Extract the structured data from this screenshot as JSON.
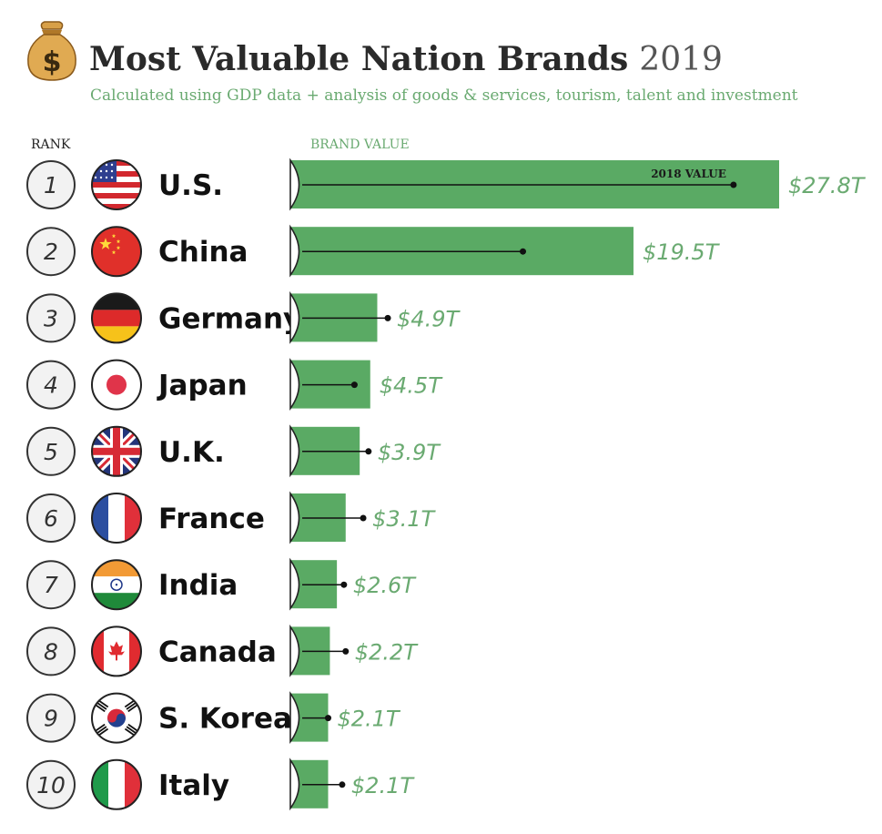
{
  "header": {
    "title": "Most Valuable Nation Brands",
    "year": "2019",
    "subtitle": "Calculated using GDP data + analysis of goods & services, tourism, talent and investment"
  },
  "columns": {
    "rank": "RANK",
    "value": "BRAND VALUE"
  },
  "annotation": "2018 VALUE",
  "colors": {
    "bar": "#5aaa64",
    "accent": "#6aaa71",
    "marker": "#111111"
  },
  "icons": {
    "title": "money-bag-icon"
  },
  "chart_data": {
    "type": "bar",
    "orientation": "horizontal",
    "unit": "$T",
    "categories": [
      "U.S.",
      "China",
      "Germany",
      "Japan",
      "U.K.",
      "France",
      "India",
      "Canada",
      "S. Korea",
      "Italy"
    ],
    "ranks": [
      "1",
      "2",
      "3",
      "4",
      "5",
      "6",
      "7",
      "8",
      "9",
      "10"
    ],
    "values": [
      27.8,
      19.5,
      4.9,
      4.5,
      3.9,
      3.1,
      2.6,
      2.2,
      2.1,
      2.1
    ],
    "value_labels": [
      "$27.8T",
      "$19.5T",
      "$4.9T",
      "$4.5T",
      "$3.9T",
      "$3.1T",
      "$2.6T",
      "$2.2T",
      "$2.1T",
      "$2.1T"
    ],
    "values_2018": [
      25.2,
      13.2,
      5.5,
      3.6,
      4.4,
      4.1,
      3.0,
      3.1,
      2.1,
      2.9
    ],
    "flags": [
      "us",
      "cn",
      "de",
      "jp",
      "gb",
      "fr",
      "in",
      "ca",
      "kr",
      "it"
    ],
    "xlim": [
      0,
      27.8
    ]
  }
}
